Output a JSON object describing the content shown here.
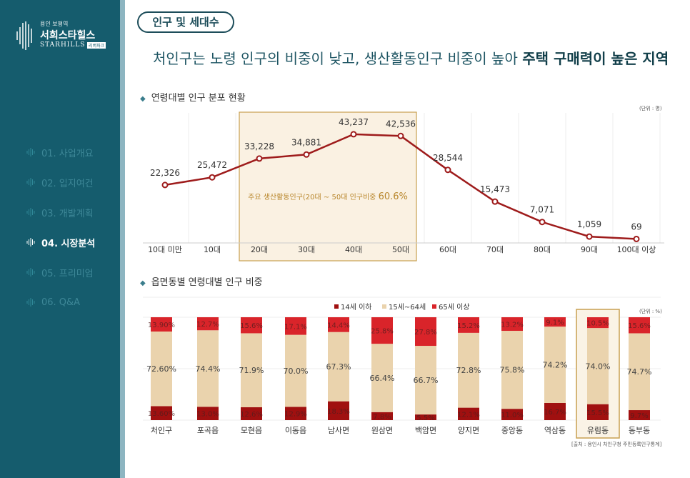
{
  "sidebar": {
    "logo": {
      "sub": "용인 보평역",
      "name": "서희스타힐스",
      "en": "STARHILLS",
      "badge": "리버파크"
    },
    "items": [
      {
        "label": "01. 사업개요",
        "active": false
      },
      {
        "label": "02. 입지여건",
        "active": false
      },
      {
        "label": "03. 개발계획",
        "active": false
      },
      {
        "label": "04. 시장분석",
        "active": true
      },
      {
        "label": "05. 프리미엄",
        "active": false
      },
      {
        "label": "06. Q&A",
        "active": false
      }
    ]
  },
  "header": {
    "pill": "인구 및 세대수",
    "headline_plain": "처인구는 노령 인구의 비중이 낮고, 생산활동인구 비중이 높아 ",
    "headline_bold": "주택 구매력이 높은 지역"
  },
  "colors": {
    "teal": "#155c6d",
    "line": "#9e1b1b",
    "under14": "#a01010",
    "mid": "#ead3ad",
    "over65": "#d9242a",
    "highlight": "#c8a050"
  },
  "chart_data": [
    {
      "type": "line",
      "title": "연령대별 인구 분포 현황",
      "unit": "(단위 : 명)",
      "categories": [
        "10대 미만",
        "10대",
        "20대",
        "30대",
        "40대",
        "50대",
        "60대",
        "70대",
        "80대",
        "90대",
        "100대 이상"
      ],
      "values": [
        22326,
        25472,
        33228,
        34881,
        43237,
        42536,
        28544,
        15473,
        7071,
        1059,
        69
      ],
      "labels": [
        "22,326",
        "25,472",
        "33,228",
        "34,881",
        "43,237",
        "42,536",
        "28,544",
        "15,473",
        "7,071",
        "1,059",
        "69"
      ],
      "highlight": {
        "range": [
          "20대",
          "50대"
        ],
        "text": "주요 생산활동인구(20대 ~ 50대 인구비중 ",
        "value": "60.6%"
      }
    },
    {
      "type": "bar",
      "stacked": true,
      "title": "읍면동별 연령대별 인구 비중",
      "unit": "(단위 : %)",
      "legend": [
        "14세 이하",
        "15세~64세",
        "65세 이상"
      ],
      "legend_position": "top",
      "categories": [
        "처인구",
        "포곡읍",
        "모현읍",
        "이동읍",
        "남사면",
        "원삼면",
        "백암면",
        "양지면",
        "중앙동",
        "역삼동",
        "유림동",
        "동부동"
      ],
      "series": [
        {
          "name": "14세 이하",
          "values": [
            13.6,
            13.0,
            12.6,
            12.9,
            18.3,
            7.8,
            5.5,
            12.1,
            11.0,
            16.7,
            15.5,
            9.7
          ],
          "labels": [
            "13.60%",
            "13.0%",
            "12.6%",
            "12.9%",
            "18.3%",
            "7.8%",
            "5.5%",
            "12.1%",
            "11.0%",
            "16.7%",
            "15.5%",
            "9.7%"
          ]
        },
        {
          "name": "15세~64세",
          "values": [
            72.6,
            74.4,
            71.9,
            70.0,
            67.3,
            66.4,
            66.7,
            72.8,
            75.8,
            74.2,
            74.0,
            74.7
          ],
          "labels": [
            "72.60%",
            "74.4%",
            "71.9%",
            "70.0%",
            "67.3%",
            "66.4%",
            "66.7%",
            "72.8%",
            "75.8%",
            "74.2%",
            "74.0%",
            "74.7%"
          ]
        },
        {
          "name": "65세 이상",
          "values": [
            13.9,
            12.7,
            15.6,
            17.1,
            14.4,
            25.8,
            27.8,
            15.2,
            13.2,
            9.1,
            10.5,
            15.6
          ],
          "labels": [
            "13.90%",
            "12.7%",
            "15.6%",
            "17.1%",
            "14.4%",
            "25.8%",
            "27.8%",
            "15.2%",
            "13.2%",
            "9.1%",
            "10.5%",
            "15.6%"
          ]
        }
      ],
      "highlight": "유림동",
      "ylim": [
        0,
        100
      ],
      "source": "[출처 : 용인시 처인구청 주민등록인구통계]"
    }
  ]
}
